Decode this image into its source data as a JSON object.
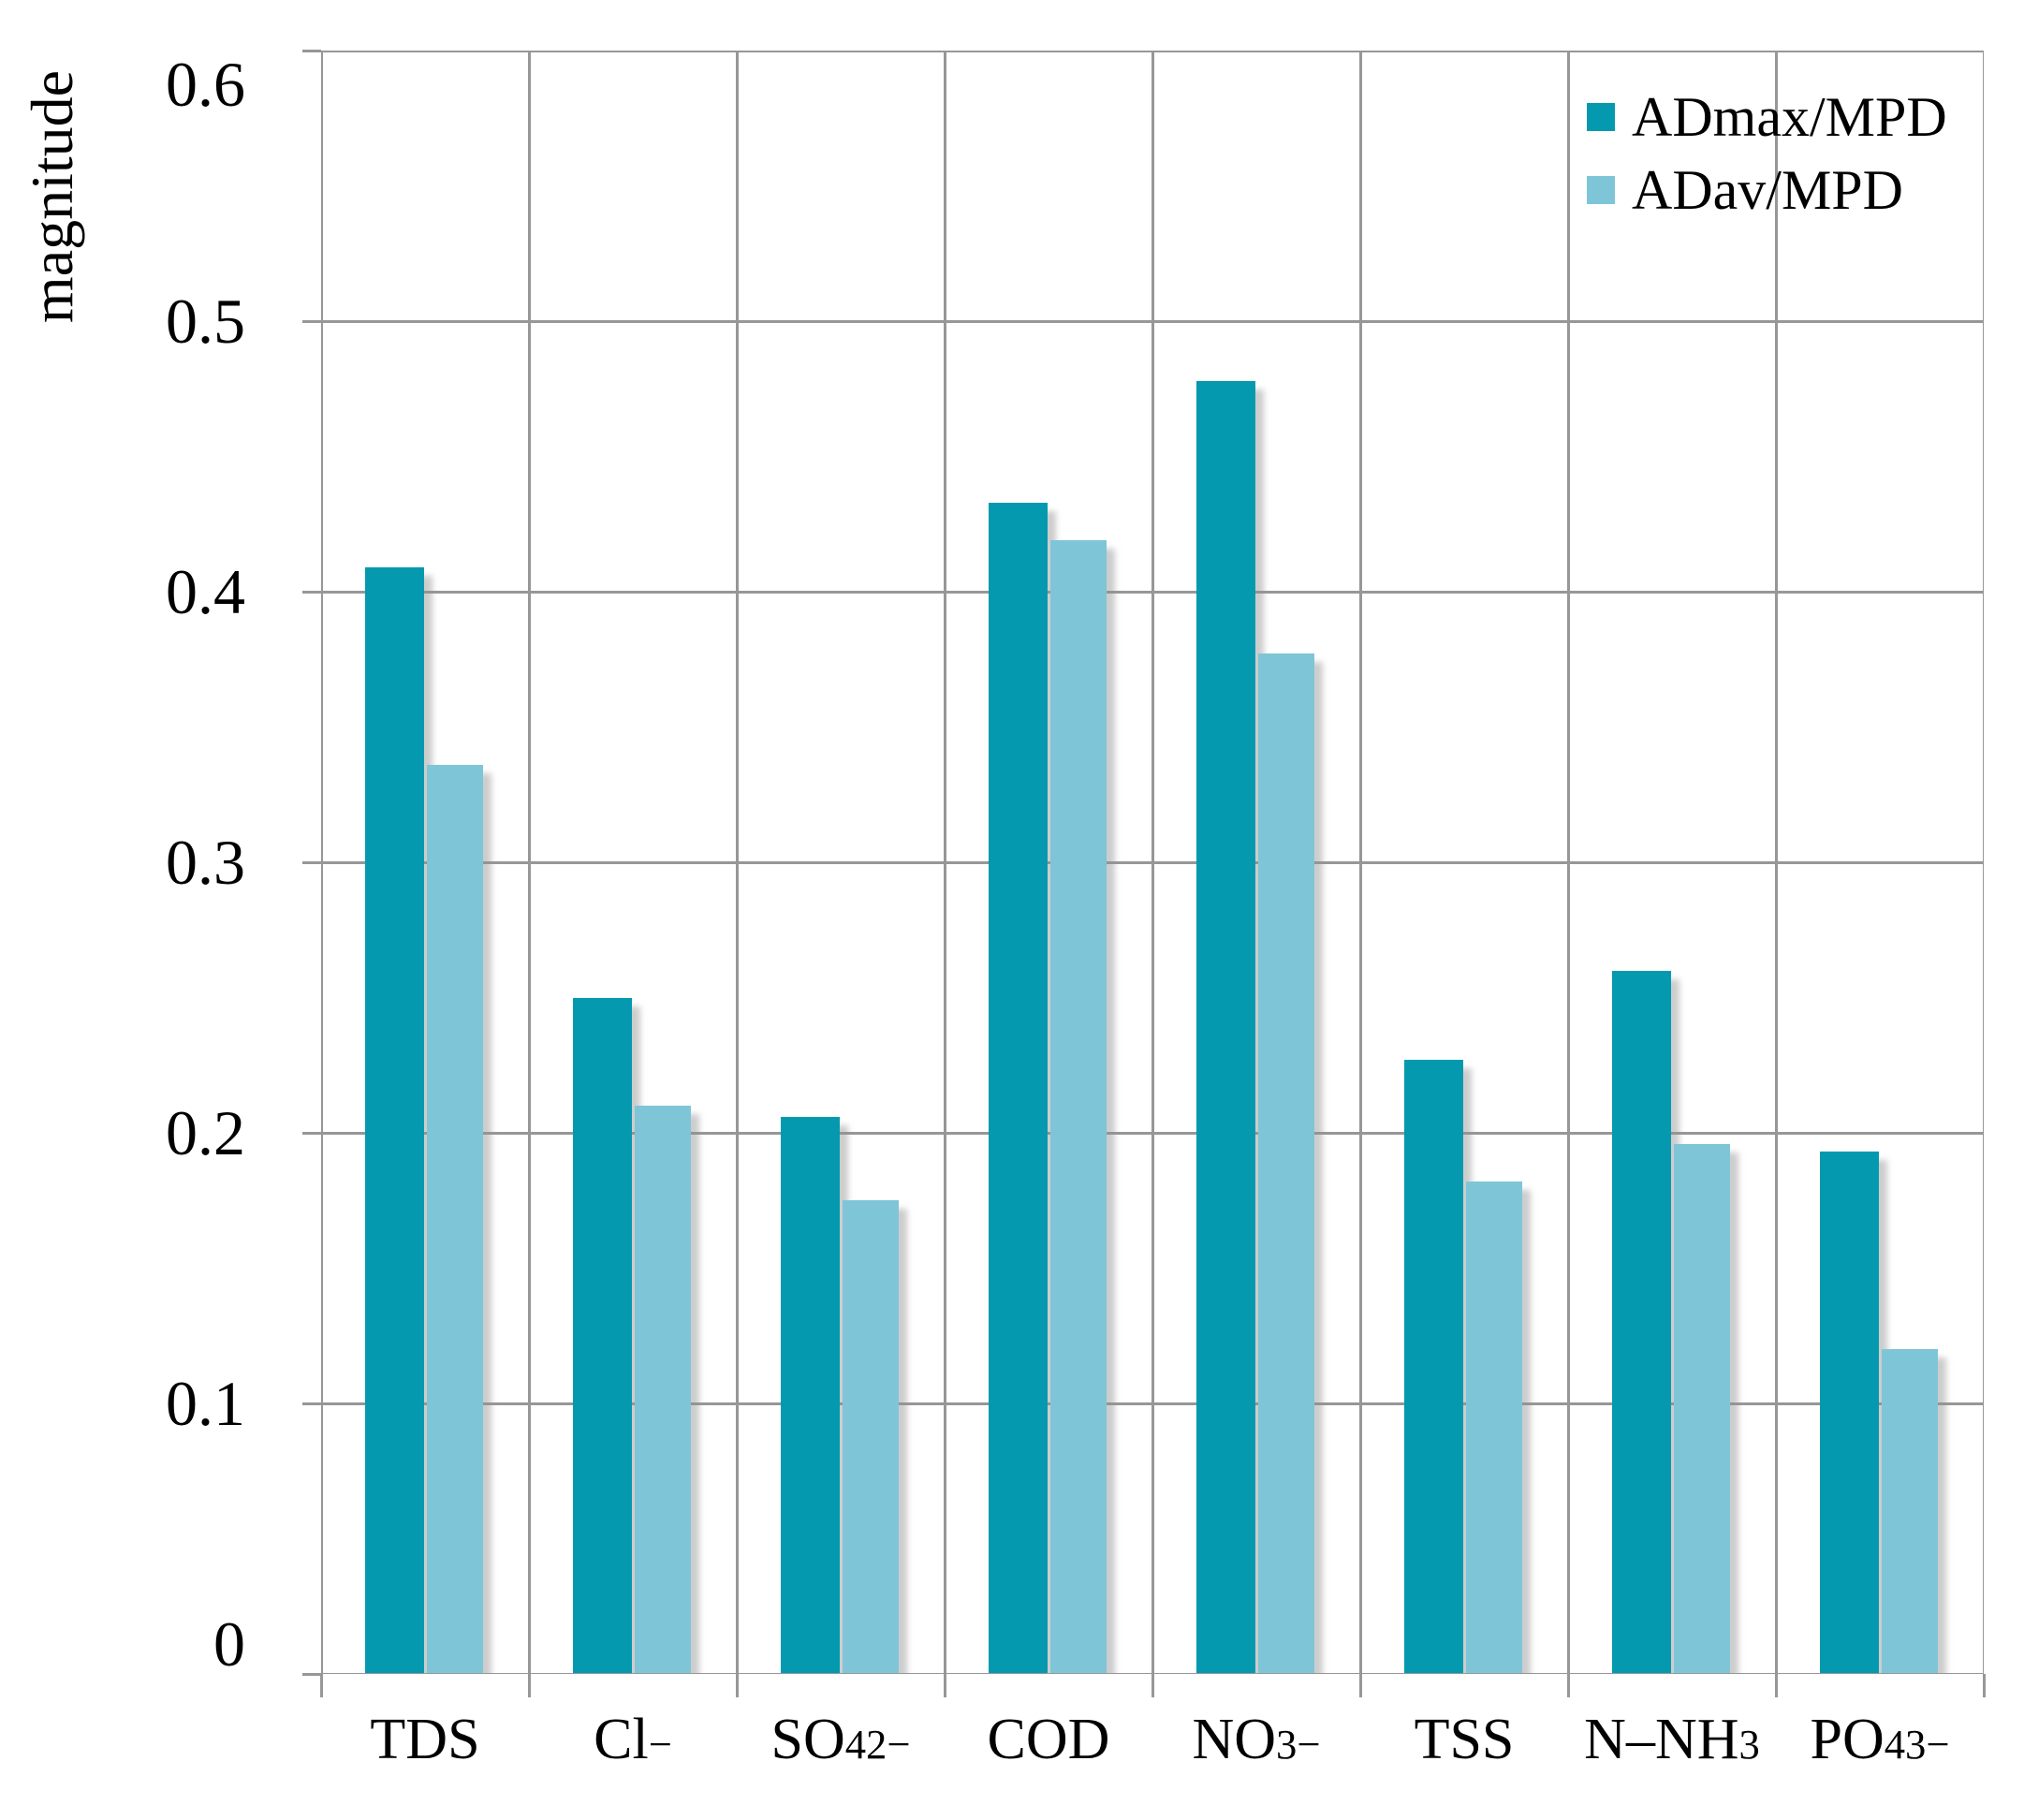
{
  "chart_data": {
    "type": "bar",
    "title": "",
    "ylabel": "magnitude",
    "xlabel": "",
    "ylim": [
      0,
      0.6
    ],
    "yticks": [
      0,
      0.1,
      0.2,
      0.3,
      0.4,
      0.5,
      0.6
    ],
    "ytick_labels": [
      "0",
      "0.1",
      "0.2",
      "0.3",
      "0.4",
      "0.5",
      "0.6"
    ],
    "grid": true,
    "legend_position": "top-right-inside",
    "categories": [
      {
        "id": "tds",
        "plain": "TDS",
        "segments": [
          {
            "text": "TDS",
            "style": "base"
          }
        ]
      },
      {
        "id": "cl",
        "plain": "Cl−",
        "segments": [
          {
            "text": "Cl",
            "style": "base"
          },
          {
            "text": "−",
            "style": "sup"
          }
        ]
      },
      {
        "id": "so4",
        "plain": "SO4 2−",
        "segments": [
          {
            "text": "SO",
            "style": "base"
          },
          {
            "text": "4",
            "style": "sub"
          },
          {
            "text": "2−",
            "style": "sup"
          }
        ]
      },
      {
        "id": "cod",
        "plain": "COD",
        "segments": [
          {
            "text": "COD",
            "style": "base"
          }
        ]
      },
      {
        "id": "no3",
        "plain": "NO3 −",
        "segments": [
          {
            "text": "NO",
            "style": "base"
          },
          {
            "text": "3",
            "style": "sub"
          },
          {
            "text": "−",
            "style": "sup"
          }
        ]
      },
      {
        "id": "tss",
        "plain": "TSS",
        "segments": [
          {
            "text": "TSS",
            "style": "base"
          }
        ]
      },
      {
        "id": "n-nh3",
        "plain": "N–NH3",
        "segments": [
          {
            "text": "N–NH",
            "style": "base"
          },
          {
            "text": "3",
            "style": "sub"
          }
        ]
      },
      {
        "id": "po4",
        "plain": "PO4 3−",
        "segments": [
          {
            "text": "PO",
            "style": "base"
          },
          {
            "text": "4",
            "style": "sub"
          },
          {
            "text": "3−",
            "style": "sup"
          }
        ]
      }
    ],
    "series": [
      {
        "name": "ADmax/MPD",
        "color": "#0499ae",
        "values": [
          0.409,
          0.25,
          0.206,
          0.433,
          0.478,
          0.227,
          0.26,
          0.193
        ]
      },
      {
        "name": "ADav/MPD",
        "color": "#7fc5d8",
        "values": [
          0.336,
          0.21,
          0.175,
          0.419,
          0.377,
          0.182,
          0.196,
          0.12
        ]
      }
    ],
    "colors": {
      "gridline": "#979797",
      "bar_shadow": "#d9d9d9",
      "text": "#000000",
      "background": "#ffffff"
    }
  }
}
